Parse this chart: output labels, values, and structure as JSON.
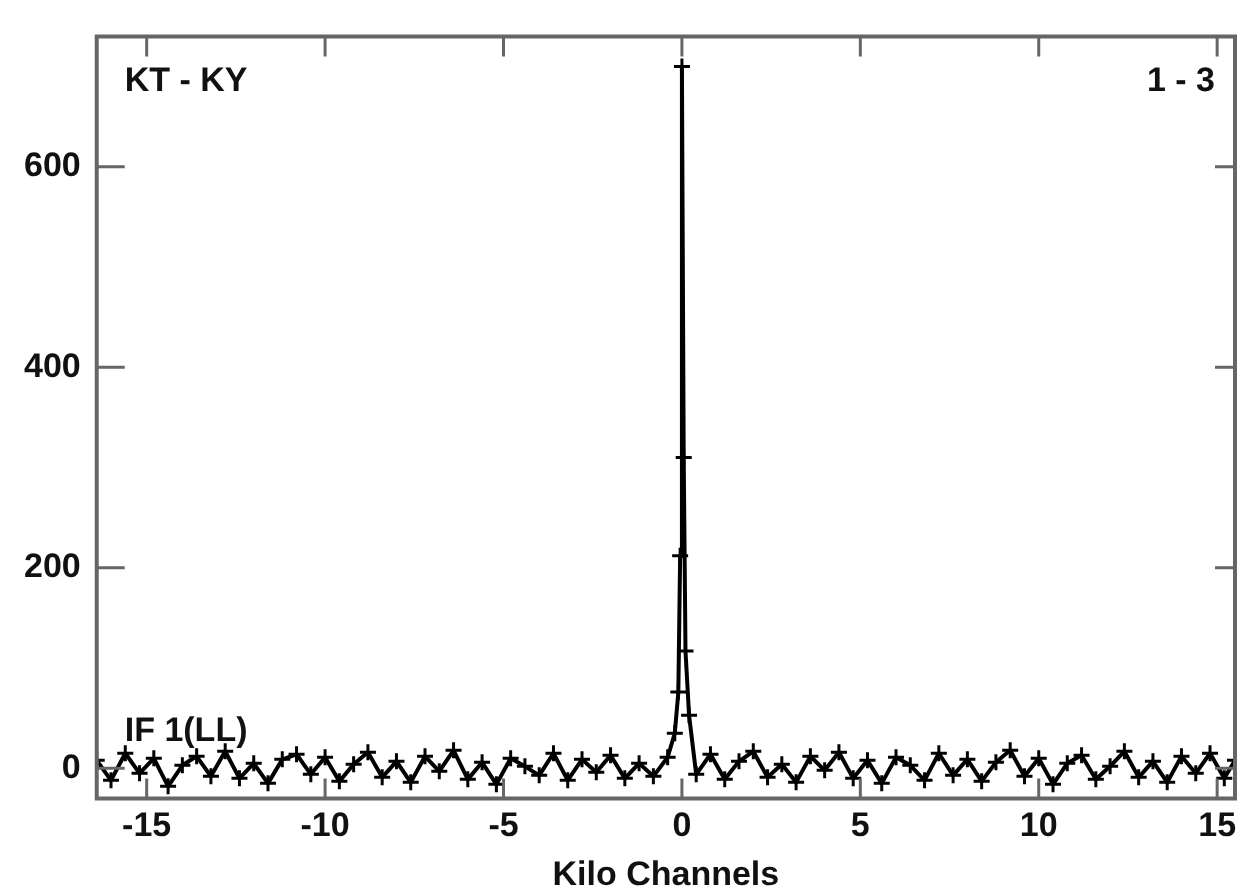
{
  "chart_data": {
    "type": "line",
    "xlabel": "Kilo Channels",
    "annotations": [
      "KT - KY",
      "1 - 3",
      "IF 1(LL)"
    ],
    "x": [
      -16.4,
      -16,
      -15.6,
      -15.2,
      -14.8,
      -14.4,
      -14,
      -13.6,
      -13.2,
      -12.8,
      -12.4,
      -12,
      -11.6,
      -11.2,
      -10.8,
      -10.4,
      -10,
      -9.6,
      -9.2,
      -8.8,
      -8.4,
      -8,
      -7.6,
      -7.2,
      -6.8,
      -6.4,
      -6,
      -5.6,
      -5.2,
      -4.8,
      -4.4,
      -4,
      -3.6,
      -3.2,
      -2.8,
      -2.4,
      -2,
      -1.6,
      -1.2,
      -0.8,
      -0.4,
      -0.2,
      -0.1,
      -0.05,
      0,
      0.05,
      0.1,
      0.2,
      0.4,
      0.8,
      1.2,
      1.6,
      2,
      2.4,
      2.8,
      3.2,
      3.6,
      4,
      4.4,
      4.8,
      5.2,
      5.6,
      6,
      6.4,
      6.8,
      7.2,
      7.6,
      8,
      8.4,
      8.8,
      9.2,
      9.6,
      10,
      10.4,
      10.8,
      11.2,
      11.6,
      12,
      12.4,
      12.8,
      13.2,
      13.6,
      14,
      14.4,
      14.8,
      15.2,
      15.5
    ],
    "series": [
      {
        "color": "#000000",
        "values": [
          8,
          -12,
          15,
          -5,
          10,
          -18,
          3,
          12,
          -8,
          17,
          -10,
          5,
          -15,
          9,
          14,
          -6,
          11,
          -13,
          4,
          16,
          -9,
          7,
          -14,
          12,
          -3,
          18,
          -11,
          6,
          -16,
          10,
          2,
          -7,
          15,
          -12,
          9,
          -4,
          13,
          -10,
          5,
          -8,
          11,
          35,
          76,
          212,
          700,
          310,
          117,
          53,
          -6,
          14,
          -11,
          7,
          17,
          -9,
          4,
          -14,
          12,
          -2,
          16,
          -10,
          8,
          -15,
          11,
          3,
          -12,
          15,
          -7,
          9,
          -13,
          6,
          18,
          -8,
          10,
          -16,
          5,
          13,
          -11,
          2,
          17,
          -9,
          7,
          -14,
          12,
          -5,
          15,
          -10,
          8
        ]
      }
    ],
    "xlim": [
      -16.4,
      15.5
    ],
    "xticks": [
      -15,
      -10,
      -5,
      0,
      5,
      10,
      15
    ],
    "ylim": [
      -30,
      730
    ],
    "yticks": [
      0,
      200,
      400,
      600
    ],
    "grid": false,
    "legend": false,
    "marker": "cross",
    "line_style": "solid"
  }
}
